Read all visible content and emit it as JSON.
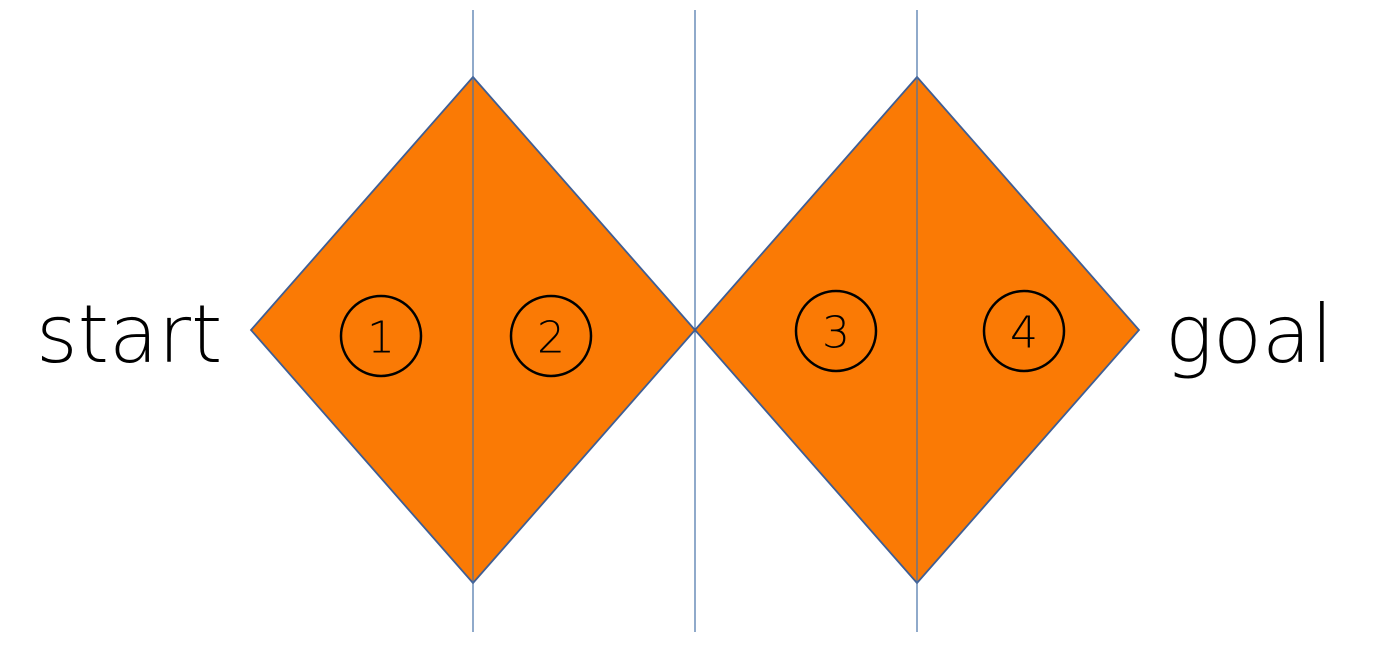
{
  "colors": {
    "diamond_fill": "#FA7A05",
    "diamond_stroke": "#3F5E94",
    "line": "#4672A8",
    "text": "#000000"
  },
  "labels": {
    "start": "start",
    "goal": "goal"
  },
  "sections": [
    {
      "number": "1"
    },
    {
      "number": "2"
    },
    {
      "number": "3"
    },
    {
      "number": "4"
    }
  ]
}
